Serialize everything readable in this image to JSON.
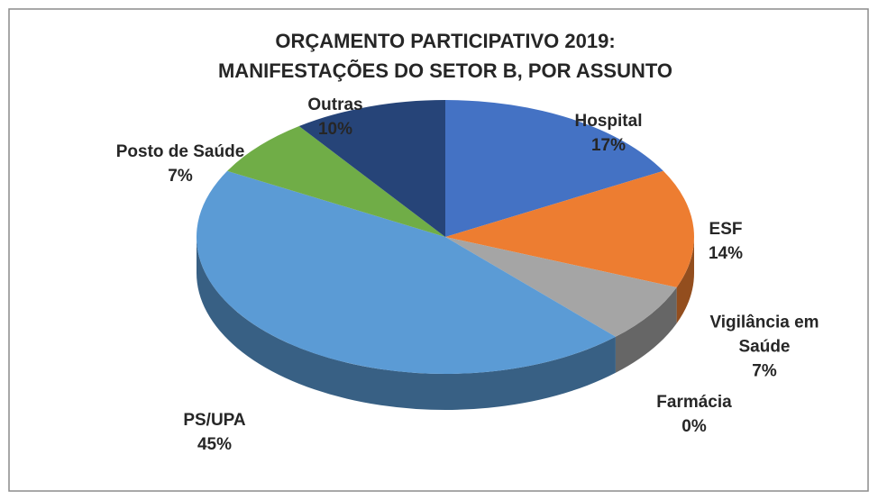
{
  "chart_data": {
    "type": "pie3d",
    "title": [
      "ORÇAMENTO PARTICIPATIVO 2019:",
      "MANIFESTAÇÕES DO SETOR B, POR ASSUNTO"
    ],
    "categories": [
      "Hospital",
      "ESF",
      "Vigilância em Saúde",
      "Farmácia",
      "PS/UPA",
      "Posto de Saúde",
      "Outras"
    ],
    "values": [
      17,
      14,
      7,
      0,
      45,
      7,
      10
    ],
    "value_labels": [
      "17%",
      "14%",
      "7%",
      "0%",
      "45%",
      "7%",
      "10%"
    ],
    "colors": [
      "#4472c4",
      "#ed7d31",
      "#a5a5a5",
      "#ffc000",
      "#5b9bd5",
      "#70ad47",
      "#264478"
    ]
  }
}
